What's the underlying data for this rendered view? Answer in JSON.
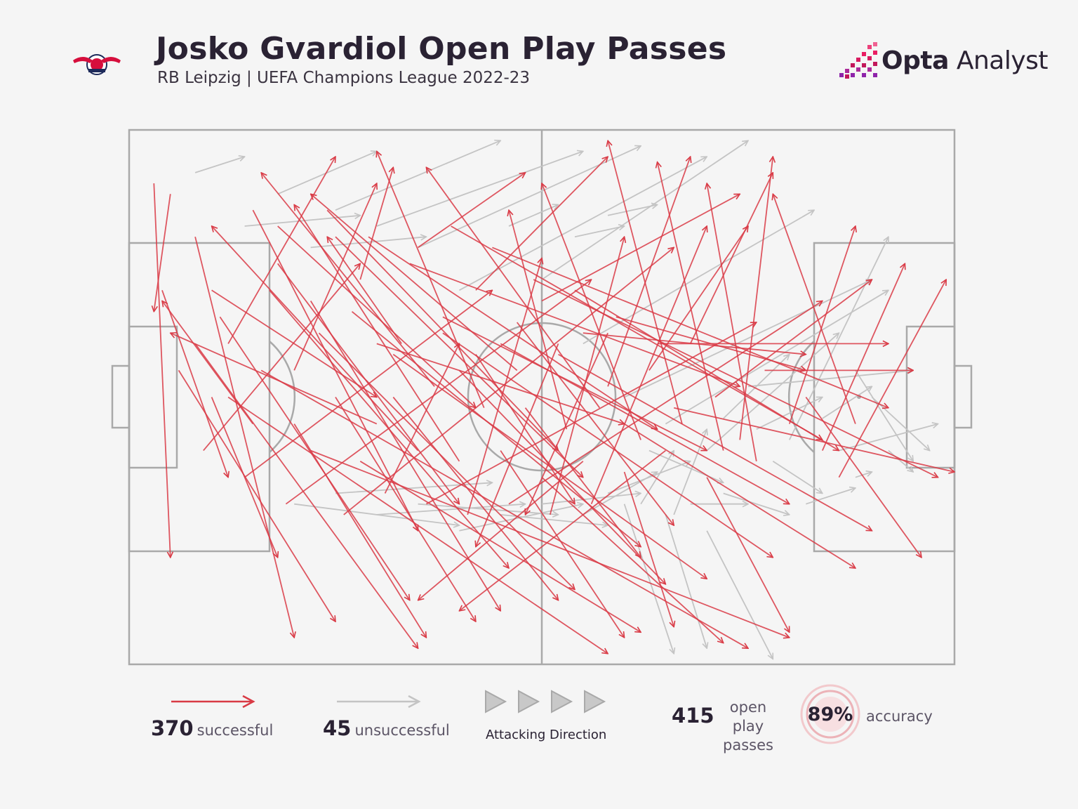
{
  "header": {
    "title": "Josko Gvardiol Open Play Passes",
    "subtitle": "RB Leipzig | UEFA Champions League 2022-23",
    "brand_bold": "Opta",
    "brand_light": " Analyst",
    "logo_text": "RB LEIPZIG"
  },
  "colors": {
    "successful": "#d93a45",
    "unsuccessful": "#c4c4c4",
    "pitch_lines": "#a9a9a9",
    "background": "#f5f5f5",
    "accent": "#c2185b"
  },
  "legend": {
    "successful_count": "370",
    "successful_label": "successful",
    "unsuccessful_count": "45",
    "unsuccessful_label": "unsuccessful",
    "direction_label": "Attacking Direction",
    "total_count": "415",
    "total_label_line1": "open play",
    "total_label_line2": "passes",
    "accuracy_value": "89%",
    "accuracy_label": "accuracy"
  },
  "chart_data": {
    "type": "pass map",
    "xlim": [
      0,
      100
    ],
    "ylim": [
      0,
      100
    ],
    "attacking_direction": "left-to-right",
    "counts": {
      "successful": 370,
      "unsuccessful": 45,
      "total": 415,
      "accuracy_pct": 89
    },
    "sample_passes_successful": [
      [
        3,
        90,
        5,
        20
      ],
      [
        5,
        88,
        3,
        66
      ],
      [
        8,
        80,
        20,
        5
      ],
      [
        10,
        70,
        30,
        50
      ],
      [
        12,
        60,
        25,
        95
      ],
      [
        15,
        85,
        35,
        25
      ],
      [
        18,
        75,
        40,
        30
      ],
      [
        20,
        55,
        30,
        90
      ],
      [
        22,
        68,
        45,
        10
      ],
      [
        25,
        80,
        55,
        35
      ],
      [
        28,
        72,
        32,
        93
      ],
      [
        30,
        60,
        60,
        45
      ],
      [
        32,
        50,
        52,
        12
      ],
      [
        35,
        78,
        48,
        92
      ],
      [
        38,
        65,
        70,
        40
      ],
      [
        40,
        55,
        65,
        15
      ],
      [
        42,
        70,
        58,
        95
      ],
      [
        45,
        60,
        80,
        30
      ],
      [
        48,
        48,
        62,
        20
      ],
      [
        50,
        68,
        74,
        88
      ],
      [
        52,
        58,
        90,
        25
      ],
      [
        55,
        62,
        82,
        58
      ],
      [
        58,
        52,
        68,
        95
      ],
      [
        60,
        45,
        88,
        18
      ],
      [
        63,
        55,
        75,
        82
      ],
      [
        66,
        48,
        100,
        36
      ],
      [
        68,
        60,
        78,
        92
      ],
      [
        71,
        50,
        90,
        72
      ],
      [
        74,
        42,
        78,
        95
      ],
      [
        77,
        55,
        95,
        55
      ],
      [
        80,
        45,
        88,
        82
      ],
      [
        82,
        50,
        96,
        20
      ],
      [
        84,
        40,
        94,
        75
      ],
      [
        86,
        35,
        99,
        72
      ],
      [
        88,
        45,
        78,
        88
      ],
      [
        20,
        45,
        36,
        5
      ],
      [
        25,
        50,
        42,
        8
      ],
      [
        30,
        45,
        5,
        62
      ],
      [
        35,
        40,
        10,
        82
      ],
      [
        40,
        38,
        20,
        86
      ],
      [
        45,
        40,
        60,
        5
      ],
      [
        50,
        35,
        72,
        4
      ],
      [
        55,
        38,
        35,
        12
      ],
      [
        60,
        36,
        66,
        7
      ],
      [
        65,
        40,
        40,
        10
      ],
      [
        70,
        35,
        80,
        6
      ],
      [
        15,
        45,
        4,
        68
      ],
      [
        10,
        50,
        18,
        20
      ],
      [
        6,
        55,
        25,
        8
      ],
      [
        4,
        70,
        12,
        35
      ],
      [
        8,
        60,
        35,
        3
      ],
      [
        12,
        50,
        58,
        2
      ],
      [
        16,
        55,
        75,
        3
      ],
      [
        22,
        40,
        80,
        5
      ],
      [
        28,
        38,
        62,
        6
      ],
      [
        33,
        60,
        24,
        80
      ],
      [
        37,
        52,
        16,
        92
      ],
      [
        43,
        48,
        30,
        96
      ],
      [
        47,
        55,
        22,
        88
      ],
      [
        53,
        44,
        46,
        85
      ],
      [
        57,
        48,
        36,
        93
      ],
      [
        62,
        42,
        50,
        90
      ],
      [
        67,
        45,
        58,
        98
      ],
      [
        72,
        40,
        64,
        94
      ],
      [
        76,
        38,
        70,
        90
      ],
      [
        18,
        82,
        42,
        48
      ],
      [
        24,
        85,
        52,
        40
      ],
      [
        29,
        80,
        64,
        44
      ],
      [
        34,
        75,
        74,
        52
      ],
      [
        39,
        82,
        84,
        42
      ],
      [
        44,
        78,
        92,
        48
      ],
      [
        49,
        72,
        98,
        35
      ],
      [
        54,
        70,
        86,
        40
      ],
      [
        59,
        65,
        82,
        55
      ],
      [
        64,
        60,
        92,
        60
      ],
      [
        9,
        40,
        28,
        75
      ],
      [
        14,
        35,
        44,
        70
      ],
      [
        19,
        30,
        56,
        72
      ],
      [
        26,
        28,
        66,
        78
      ],
      [
        31,
        32,
        40,
        60
      ],
      [
        36,
        30,
        76,
        64
      ],
      [
        41,
        28,
        50,
        76
      ],
      [
        46,
        30,
        84,
        68
      ],
      [
        51,
        28,
        60,
        80
      ],
      [
        56,
        30,
        70,
        82
      ],
      [
        11,
        65,
        34,
        12
      ],
      [
        17,
        70,
        46,
        18
      ],
      [
        23,
        62,
        54,
        14
      ],
      [
        27,
        66,
        62,
        22
      ],
      [
        32,
        58,
        70,
        16
      ],
      [
        38,
        62,
        78,
        20
      ],
      [
        42,
        58,
        54,
        30
      ],
      [
        47,
        64,
        66,
        26
      ],
      [
        52,
        60,
        42,
        22
      ],
      [
        58,
        62,
        48,
        28
      ]
    ],
    "sample_passes_unsuccessful": [
      [
        8,
        92,
        14,
        95
      ],
      [
        18,
        88,
        30,
        96
      ],
      [
        25,
        85,
        45,
        98
      ],
      [
        30,
        82,
        55,
        96
      ],
      [
        35,
        78,
        62,
        97
      ],
      [
        40,
        70,
        70,
        95
      ],
      [
        50,
        72,
        75,
        98
      ],
      [
        55,
        60,
        83,
        85
      ],
      [
        60,
        50,
        90,
        72
      ],
      [
        65,
        45,
        92,
        70
      ],
      [
        70,
        40,
        86,
        62
      ],
      [
        75,
        52,
        95,
        55
      ],
      [
        80,
        42,
        92,
        80
      ],
      [
        86,
        40,
        98,
        45
      ],
      [
        88,
        55,
        95,
        38
      ],
      [
        90,
        50,
        97,
        40
      ],
      [
        92,
        40,
        95,
        36
      ],
      [
        88,
        35,
        90,
        36
      ],
      [
        60,
        30,
        66,
        2
      ],
      [
        65,
        28,
        70,
        3
      ],
      [
        70,
        25,
        78,
        1
      ],
      [
        63,
        40,
        72,
        34
      ],
      [
        68,
        30,
        75,
        30
      ],
      [
        72,
        32,
        80,
        28
      ],
      [
        78,
        38,
        84,
        32
      ],
      [
        82,
        30,
        88,
        33
      ],
      [
        20,
        30,
        40,
        26
      ],
      [
        25,
        32,
        44,
        34
      ],
      [
        30,
        28,
        48,
        30
      ],
      [
        35,
        30,
        52,
        28
      ],
      [
        40,
        25,
        55,
        30
      ],
      [
        45,
        28,
        58,
        26
      ],
      [
        50,
        30,
        62,
        32
      ],
      [
        55,
        28,
        64,
        36
      ],
      [
        58,
        32,
        68,
        38
      ],
      [
        62,
        30,
        66,
        40
      ],
      [
        66,
        28,
        70,
        44
      ],
      [
        72,
        46,
        80,
        58
      ],
      [
        76,
        44,
        84,
        50
      ],
      [
        84,
        46,
        90,
        52
      ],
      [
        14,
        82,
        28,
        84
      ],
      [
        22,
        78,
        36,
        80
      ],
      [
        46,
        82,
        52,
        86
      ],
      [
        54,
        80,
        60,
        82
      ],
      [
        58,
        84,
        64,
        86
      ]
    ]
  }
}
